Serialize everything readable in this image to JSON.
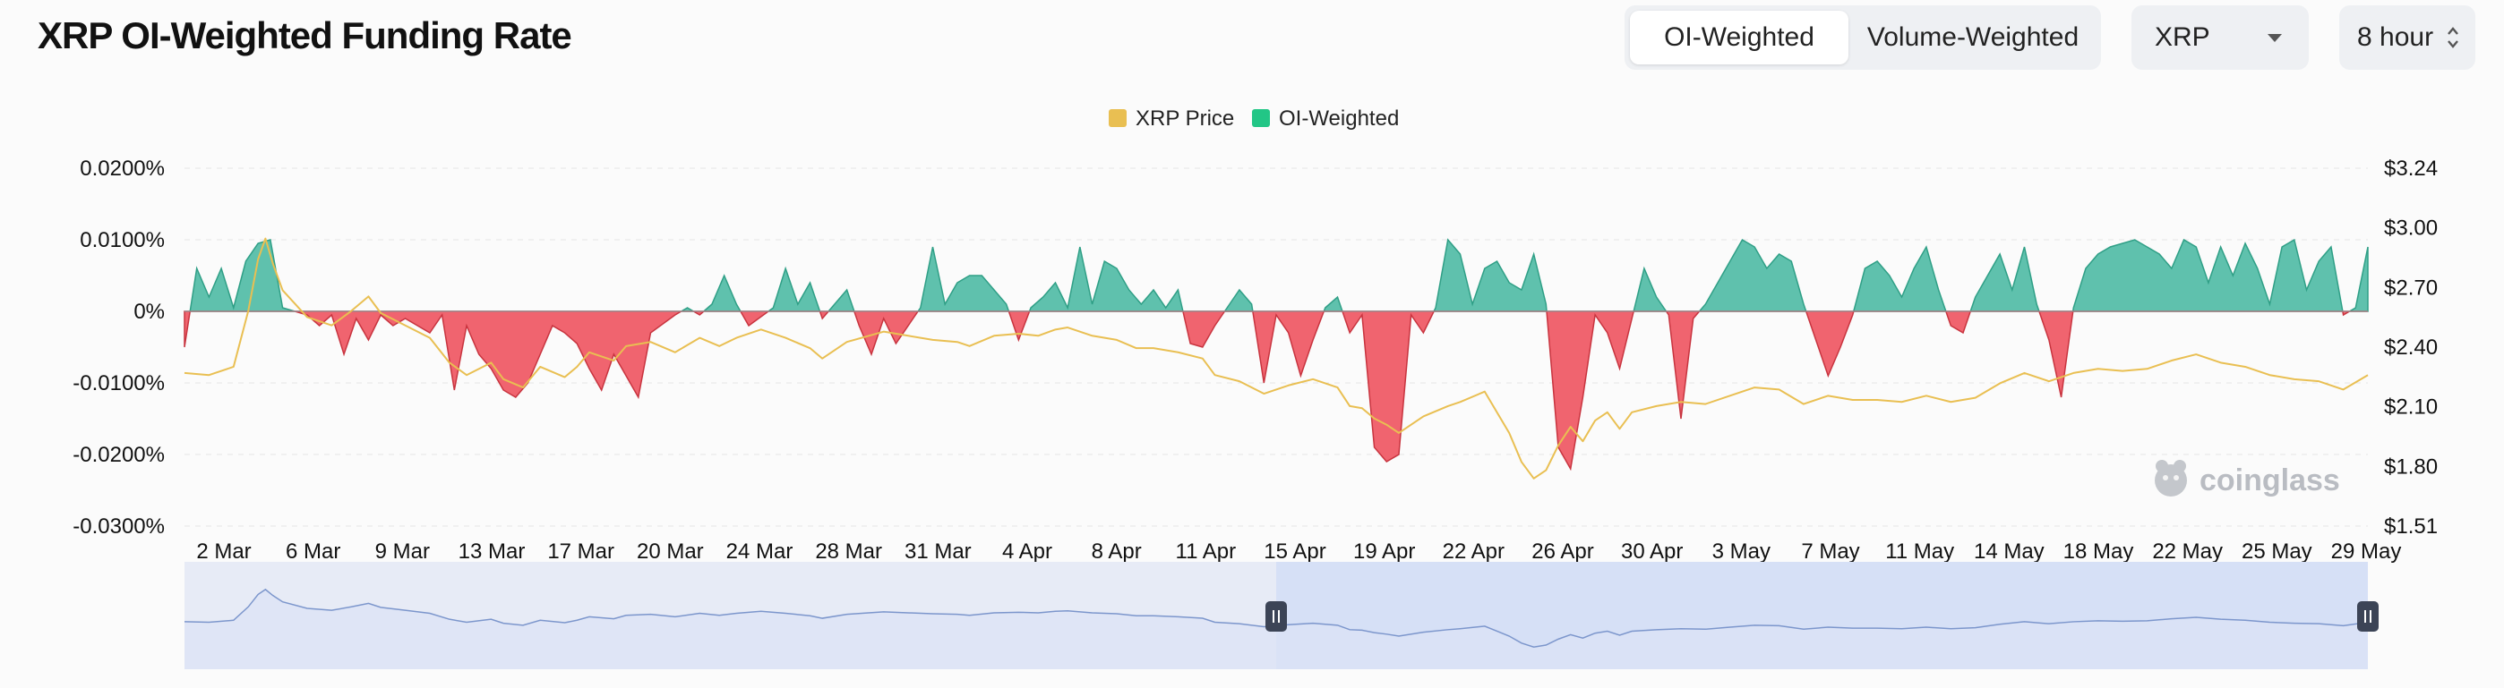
{
  "header": {
    "title": "XRP OI-Weighted Funding Rate",
    "toggle": {
      "options": [
        "OI-Weighted",
        "Volume-Weighted"
      ],
      "active": 0
    },
    "coin_select": {
      "value": "XRP",
      "icon": "chevron-down-icon"
    },
    "interval_select": {
      "value": "8 hour",
      "icon": "up-down-chevrons-icon"
    }
  },
  "watermark": {
    "text": "coinglass",
    "icon": "coinglass-logo-icon"
  },
  "colors": {
    "positive": "#5fc1ad",
    "positive_stroke": "#2f9f86",
    "negative": "#f0646f",
    "negative_stroke": "#c8343f",
    "price": "#e9bf52",
    "legend_oi": "#22c686",
    "navigator_fill": "#e7ebf6",
    "navigator_selected": "#d6e0f6",
    "navigator_line": "#7c96cc",
    "handle": "#3c4456"
  },
  "chart_data": {
    "type": "area",
    "title": "XRP OI-Weighted Funding Rate",
    "legend": {
      "placement": "top-center",
      "items": [
        {
          "name": "XRP Price",
          "color": "#e9bf52"
        },
        {
          "name": "OI-Weighted",
          "color": "#22c686"
        }
      ]
    },
    "x_tick_labels": [
      "2 Mar",
      "6 Mar",
      "9 Mar",
      "13 Mar",
      "17 Mar",
      "20 Mar",
      "24 Mar",
      "28 Mar",
      "31 Mar",
      "4 Apr",
      "8 Apr",
      "11 Apr",
      "15 Apr",
      "19 Apr",
      "22 Apr",
      "26 Apr",
      "30 Apr",
      "3 May",
      "7 May",
      "11 May",
      "14 May",
      "18 May",
      "22 May",
      "25 May",
      "29 May"
    ],
    "y_left": {
      "ticks": [
        "0.0200%",
        "0.0100%",
        "0%",
        "-0.0100%",
        "-0.0200%",
        "-0.0300%"
      ],
      "range": [
        -0.03,
        0.02
      ],
      "unit": "%"
    },
    "y_right": {
      "ticks": [
        "$3.24",
        "$3.00",
        "$2.70",
        "$2.40",
        "$2.10",
        "$1.80",
        "$1.51"
      ],
      "range": [
        1.51,
        3.24
      ]
    },
    "grid": "horizontal dashed",
    "x_range": [
      0,
      89
    ],
    "series": [
      {
        "name": "OI-Weighted",
        "axis": "left",
        "points": [
          [
            0,
            -0.005
          ],
          [
            0.5,
            0.006
          ],
          [
            1,
            0.002
          ],
          [
            1.5,
            0.006
          ],
          [
            2,
            0.0005
          ],
          [
            2.5,
            0.007
          ],
          [
            3,
            0.0095
          ],
          [
            3.5,
            0.01
          ],
          [
            4,
            0.0005
          ],
          [
            5,
            -0.0005
          ],
          [
            5.5,
            -0.002
          ],
          [
            6,
            -0.0005
          ],
          [
            6.5,
            -0.006
          ],
          [
            7,
            -0.001
          ],
          [
            7.5,
            -0.004
          ],
          [
            8,
            -0.0005
          ],
          [
            8.5,
            -0.002
          ],
          [
            9,
            -0.001
          ],
          [
            10,
            -0.003
          ],
          [
            10.5,
            -0.0005
          ],
          [
            11,
            -0.011
          ],
          [
            11.5,
            -0.002
          ],
          [
            12,
            -0.006
          ],
          [
            12.5,
            -0.008
          ],
          [
            13,
            -0.011
          ],
          [
            13.5,
            -0.012
          ],
          [
            14,
            -0.01
          ],
          [
            14.5,
            -0.006
          ],
          [
            15,
            -0.002
          ],
          [
            15.5,
            -0.003
          ],
          [
            16,
            -0.0045
          ],
          [
            16.5,
            -0.008
          ],
          [
            17,
            -0.011
          ],
          [
            17.5,
            -0.006
          ],
          [
            18,
            -0.009
          ],
          [
            18.5,
            -0.012
          ],
          [
            19,
            -0.003
          ],
          [
            20,
            -0.0005
          ],
          [
            20.5,
            0.0005
          ],
          [
            21,
            -0.0005
          ],
          [
            21.5,
            0.001
          ],
          [
            22,
            0.005
          ],
          [
            22.5,
            0.001
          ],
          [
            23,
            -0.002
          ],
          [
            24,
            0.0005
          ],
          [
            24.5,
            0.006
          ],
          [
            25,
            0.001
          ],
          [
            25.5,
            0.004
          ],
          [
            26,
            -0.001
          ],
          [
            27,
            0.003
          ],
          [
            27.5,
            -0.002
          ],
          [
            28,
            -0.006
          ],
          [
            28.5,
            -0.001
          ],
          [
            29,
            -0.0045
          ],
          [
            30,
            0.0005
          ],
          [
            30.5,
            0.009
          ],
          [
            31,
            0.001
          ],
          [
            31.5,
            0.004
          ],
          [
            32,
            0.005
          ],
          [
            32.5,
            0.005
          ],
          [
            33,
            0.003
          ],
          [
            33.5,
            0.001
          ],
          [
            34,
            -0.004
          ],
          [
            34.5,
            0.0005
          ],
          [
            35,
            0.002
          ],
          [
            35.5,
            0.004
          ],
          [
            36,
            0.0005
          ],
          [
            36.5,
            0.009
          ],
          [
            37,
            0.001
          ],
          [
            37.5,
            0.007
          ],
          [
            38,
            0.006
          ],
          [
            38.5,
            0.003
          ],
          [
            39,
            0.001
          ],
          [
            39.5,
            0.003
          ],
          [
            40,
            0.0005
          ],
          [
            40.5,
            0.003
          ],
          [
            41,
            -0.0045
          ],
          [
            41.5,
            -0.005
          ],
          [
            42,
            -0.002
          ],
          [
            42.5,
            0.0005
          ],
          [
            43,
            0.003
          ],
          [
            43.5,
            0.001
          ],
          [
            44,
            -0.01
          ],
          [
            44.5,
            -0.0005
          ],
          [
            45,
            -0.003
          ],
          [
            45.5,
            -0.009
          ],
          [
            46,
            -0.004
          ],
          [
            46.5,
            0.0005
          ],
          [
            47,
            0.002
          ],
          [
            47.5,
            -0.003
          ],
          [
            48,
            -0.0005
          ],
          [
            48.5,
            -0.019
          ],
          [
            49,
            -0.021
          ],
          [
            49.5,
            -0.02
          ],
          [
            50,
            -0.0005
          ],
          [
            50.5,
            -0.003
          ],
          [
            51,
            0.0005
          ],
          [
            51.5,
            0.01
          ],
          [
            52,
            0.008
          ],
          [
            52.5,
            0.001
          ],
          [
            53,
            0.006
          ],
          [
            53.5,
            0.007
          ],
          [
            54,
            0.004
          ],
          [
            54.5,
            0.003
          ],
          [
            55,
            0.008
          ],
          [
            55.5,
            0.001
          ],
          [
            56,
            -0.019
          ],
          [
            56.5,
            -0.022
          ],
          [
            57,
            -0.012
          ],
          [
            57.5,
            -0.0005
          ],
          [
            58,
            -0.003
          ],
          [
            58.5,
            -0.008
          ],
          [
            59,
            -0.001
          ],
          [
            59.5,
            0.006
          ],
          [
            60,
            0.002
          ],
          [
            60.5,
            -0.0005
          ],
          [
            61,
            -0.015
          ],
          [
            61.5,
            -0.001
          ],
          [
            62,
            0.001
          ],
          [
            62.5,
            0.004
          ],
          [
            63,
            0.007
          ],
          [
            63.5,
            0.01
          ],
          [
            64,
            0.009
          ],
          [
            64.5,
            0.006
          ],
          [
            65,
            0.008
          ],
          [
            65.5,
            0.007
          ],
          [
            66,
            0.001
          ],
          [
            66.5,
            -0.004
          ],
          [
            67,
            -0.009
          ],
          [
            67.5,
            -0.005
          ],
          [
            68,
            -0.0005
          ],
          [
            68.5,
            0.006
          ],
          [
            69,
            0.007
          ],
          [
            69.5,
            0.005
          ],
          [
            70,
            0.002
          ],
          [
            70.5,
            0.006
          ],
          [
            71,
            0.009
          ],
          [
            71.5,
            0.003
          ],
          [
            72,
            -0.002
          ],
          [
            72.5,
            -0.003
          ],
          [
            73,
            0.002
          ],
          [
            73.5,
            0.005
          ],
          [
            74,
            0.008
          ],
          [
            74.5,
            0.003
          ],
          [
            75,
            0.009
          ],
          [
            75.5,
            0.001
          ],
          [
            76,
            -0.004
          ],
          [
            76.5,
            -0.012
          ],
          [
            77,
            0.0005
          ],
          [
            77.5,
            0.006
          ],
          [
            78,
            0.008
          ],
          [
            78.5,
            0.009
          ],
          [
            79,
            0.0095
          ],
          [
            79.5,
            0.01
          ],
          [
            80,
            0.009
          ],
          [
            80.5,
            0.008
          ],
          [
            81,
            0.006
          ],
          [
            81.5,
            0.01
          ],
          [
            82,
            0.009
          ],
          [
            82.5,
            0.004
          ],
          [
            83,
            0.009
          ],
          [
            83.5,
            0.005
          ],
          [
            84,
            0.0095
          ],
          [
            84.5,
            0.006
          ],
          [
            85,
            0.001
          ],
          [
            85.5,
            0.009
          ],
          [
            86,
            0.01
          ],
          [
            86.5,
            0.003
          ],
          [
            87,
            0.007
          ],
          [
            87.5,
            0.009
          ],
          [
            88,
            -0.0005
          ],
          [
            88.5,
            0.0005
          ],
          [
            89,
            0.009
          ]
        ]
      },
      {
        "name": "XRP Price",
        "axis": "right",
        "points": [
          [
            0,
            2.25
          ],
          [
            1,
            2.24
          ],
          [
            2,
            2.28
          ],
          [
            2.6,
            2.55
          ],
          [
            3,
            2.8
          ],
          [
            3.3,
            2.9
          ],
          [
            3.6,
            2.78
          ],
          [
            4,
            2.65
          ],
          [
            5,
            2.52
          ],
          [
            6,
            2.48
          ],
          [
            6.8,
            2.55
          ],
          [
            7.5,
            2.62
          ],
          [
            8,
            2.54
          ],
          [
            9,
            2.48
          ],
          [
            10,
            2.42
          ],
          [
            10.8,
            2.3
          ],
          [
            11.5,
            2.24
          ],
          [
            12.5,
            2.3
          ],
          [
            13,
            2.22
          ],
          [
            13.8,
            2.18
          ],
          [
            14.5,
            2.28
          ],
          [
            15.5,
            2.23
          ],
          [
            16,
            2.28
          ],
          [
            16.5,
            2.35
          ],
          [
            17.5,
            2.31
          ],
          [
            18,
            2.38
          ],
          [
            19,
            2.4
          ],
          [
            20,
            2.35
          ],
          [
            21,
            2.42
          ],
          [
            21.8,
            2.38
          ],
          [
            22.5,
            2.42
          ],
          [
            23.5,
            2.46
          ],
          [
            24.5,
            2.42
          ],
          [
            25.5,
            2.37
          ],
          [
            26,
            2.32
          ],
          [
            27,
            2.4
          ],
          [
            28.5,
            2.45
          ],
          [
            29.5,
            2.43
          ],
          [
            30.5,
            2.41
          ],
          [
            31.5,
            2.4
          ],
          [
            32,
            2.38
          ],
          [
            33,
            2.43
          ],
          [
            34,
            2.44
          ],
          [
            34.8,
            2.43
          ],
          [
            35.5,
            2.46
          ],
          [
            36,
            2.47
          ],
          [
            37,
            2.43
          ],
          [
            38,
            2.41
          ],
          [
            38.8,
            2.37
          ],
          [
            39.5,
            2.37
          ],
          [
            40.5,
            2.35
          ],
          [
            41.5,
            2.32
          ],
          [
            42,
            2.24
          ],
          [
            43,
            2.21
          ],
          [
            44,
            2.15
          ],
          [
            45,
            2.19
          ],
          [
            46,
            2.22
          ],
          [
            47,
            2.18
          ],
          [
            47.5,
            2.09
          ],
          [
            48,
            2.08
          ],
          [
            48.5,
            2.03
          ],
          [
            49,
            2.0
          ],
          [
            49.5,
            1.96
          ],
          [
            50.5,
            2.04
          ],
          [
            51.5,
            2.09
          ],
          [
            52,
            2.11
          ],
          [
            53,
            2.16
          ],
          [
            53.5,
            2.06
          ],
          [
            54,
            1.96
          ],
          [
            54.5,
            1.82
          ],
          [
            55,
            1.74
          ],
          [
            55.5,
            1.78
          ],
          [
            56,
            1.9
          ],
          [
            56.5,
            1.99
          ],
          [
            57,
            1.92
          ],
          [
            57.5,
            2.02
          ],
          [
            58,
            2.06
          ],
          [
            58.5,
            1.98
          ],
          [
            59,
            2.06
          ],
          [
            60,
            2.09
          ],
          [
            61,
            2.11
          ],
          [
            62,
            2.1
          ],
          [
            63,
            2.14
          ],
          [
            64,
            2.18
          ],
          [
            65,
            2.17
          ],
          [
            66,
            2.1
          ],
          [
            67,
            2.14
          ],
          [
            68,
            2.12
          ],
          [
            69,
            2.12
          ],
          [
            70,
            2.11
          ],
          [
            71,
            2.14
          ],
          [
            72,
            2.11
          ],
          [
            73,
            2.13
          ],
          [
            74,
            2.2
          ],
          [
            75,
            2.25
          ],
          [
            76,
            2.21
          ],
          [
            77,
            2.25
          ],
          [
            78,
            2.27
          ],
          [
            79,
            2.26
          ],
          [
            80,
            2.27
          ],
          [
            81,
            2.31
          ],
          [
            82,
            2.34
          ],
          [
            83,
            2.3
          ],
          [
            84,
            2.28
          ],
          [
            85,
            2.24
          ],
          [
            86,
            2.22
          ],
          [
            87,
            2.21
          ],
          [
            88,
            2.17
          ],
          [
            89,
            2.24
          ]
        ]
      }
    ],
    "navigator": {
      "selected_range": [
        0.5,
        1.0
      ]
    }
  }
}
